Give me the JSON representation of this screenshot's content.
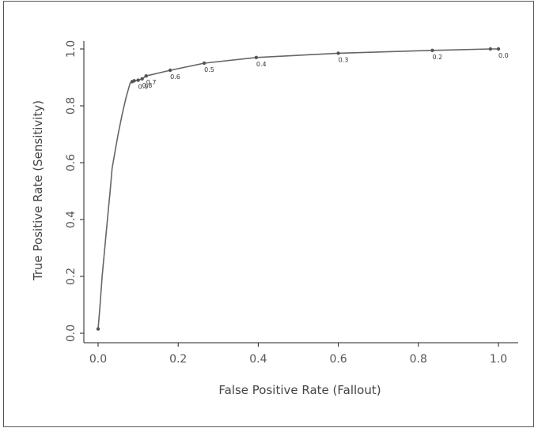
{
  "chart_data": {
    "type": "line",
    "title": "",
    "xlabel": "False Positive Rate (Fallout)",
    "ylabel": "True Positive Rate (Sensitivity)",
    "xlim": [
      0.0,
      1.0
    ],
    "ylim": [
      0.0,
      1.0
    ],
    "x_ticks": [
      "0.0",
      "0.2",
      "0.4",
      "0.6",
      "0.8",
      "1.0"
    ],
    "y_ticks": [
      "0.0",
      "0.2",
      "0.4",
      "0.6",
      "0.8",
      "1.0"
    ],
    "grid": false,
    "line_color": "#666666",
    "series": [
      {
        "x": [
          0.0,
          0.005,
          0.01,
          0.02,
          0.03,
          0.035,
          0.04,
          0.05,
          0.06,
          0.07,
          0.08,
          0.085,
          0.09,
          0.1,
          0.11,
          0.12,
          0.18,
          0.265,
          0.395,
          0.6,
          0.835,
          0.98,
          1.0
        ],
        "y": [
          0.015,
          0.1,
          0.2,
          0.35,
          0.5,
          0.58,
          0.62,
          0.7,
          0.77,
          0.83,
          0.88,
          0.885,
          0.888,
          0.89,
          0.895,
          0.905,
          0.925,
          0.95,
          0.97,
          0.985,
          0.995,
          1.0,
          1.0
        ]
      }
    ],
    "markers": [
      {
        "x": 0.0,
        "y": 0.015,
        "label": ""
      },
      {
        "x": 0.085,
        "y": 0.885,
        "label": ""
      },
      {
        "x": 0.09,
        "y": 0.888,
        "label": ""
      },
      {
        "x": 0.1,
        "y": 0.89,
        "label": "0.9"
      },
      {
        "x": 0.11,
        "y": 0.895,
        "label": "0.8"
      },
      {
        "x": 0.12,
        "y": 0.905,
        "label": "0.7"
      },
      {
        "x": 0.18,
        "y": 0.925,
        "label": "0.6"
      },
      {
        "x": 0.265,
        "y": 0.95,
        "label": "0.5"
      },
      {
        "x": 0.395,
        "y": 0.97,
        "label": "0.4"
      },
      {
        "x": 0.6,
        "y": 0.985,
        "label": "0.3"
      },
      {
        "x": 0.835,
        "y": 0.995,
        "label": "0.2"
      },
      {
        "x": 0.98,
        "y": 1.0,
        "label": ""
      },
      {
        "x": 1.0,
        "y": 1.0,
        "label": "0.0"
      }
    ]
  }
}
